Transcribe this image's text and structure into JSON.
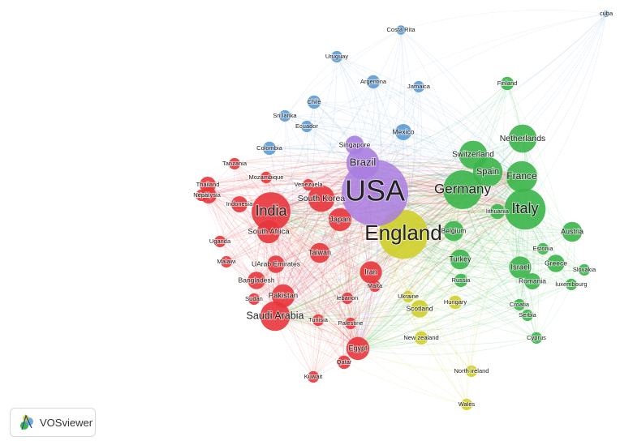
{
  "brand": {
    "name": "VOSviewer",
    "icon": "vosviewer-logo-icon"
  },
  "clusters": {
    "red": {
      "color": "#e8353b"
    },
    "green": {
      "color": "#3bb54a"
    },
    "blue": {
      "color": "#5b9bd5"
    },
    "yellow": {
      "color": "#cfcf2a"
    },
    "purple": {
      "color": "#a97ee0"
    }
  },
  "nodes": [
    {
      "label": "USA",
      "cluster": "purple",
      "weight": 100
    },
    {
      "label": "England",
      "cluster": "yellow",
      "weight": 55
    },
    {
      "label": "Italy",
      "cluster": "green",
      "weight": 38
    },
    {
      "label": "Germany",
      "cluster": "green",
      "weight": 34
    },
    {
      "label": "India",
      "cluster": "red",
      "weight": 34
    },
    {
      "label": "France",
      "cluster": "green",
      "weight": 22
    },
    {
      "label": "Spain",
      "cluster": "green",
      "weight": 20
    },
    {
      "label": "Switzerland",
      "cluster": "green",
      "weight": 18
    },
    {
      "label": "Netherlands",
      "cluster": "green",
      "weight": 18
    },
    {
      "label": "Brazil",
      "cluster": "purple",
      "weight": 24
    },
    {
      "label": "Saudi Arabia",
      "cluster": "red",
      "weight": 20
    },
    {
      "label": "South Korea",
      "cluster": "red",
      "weight": 16
    },
    {
      "label": "Japan",
      "cluster": "red",
      "weight": 12
    },
    {
      "label": "South Africa",
      "cluster": "red",
      "weight": 12
    },
    {
      "label": "Egypt",
      "cluster": "red",
      "weight": 12
    },
    {
      "label": "Pakistan",
      "cluster": "red",
      "weight": 12
    },
    {
      "label": "Iran",
      "cluster": "red",
      "weight": 11
    },
    {
      "label": "Taiwan",
      "cluster": "red",
      "weight": 9
    },
    {
      "label": "Israel",
      "cluster": "green",
      "weight": 11
    },
    {
      "label": "Turkey",
      "cluster": "green",
      "weight": 9
    },
    {
      "label": "Belgium",
      "cluster": "green",
      "weight": 9
    },
    {
      "label": "Austria",
      "cluster": "green",
      "weight": 9
    },
    {
      "label": "Greece",
      "cluster": "green",
      "weight": 7
    },
    {
      "label": "Singapore",
      "cluster": "purple",
      "weight": 8
    },
    {
      "label": "Mexico",
      "cluster": "blue",
      "weight": 6
    },
    {
      "label": "Bangladesh",
      "cluster": "red",
      "weight": 7
    },
    {
      "label": "UArab Emirates",
      "cluster": "red",
      "weight": 7
    },
    {
      "label": "Thailand",
      "cluster": "red",
      "weight": 6
    },
    {
      "label": "Indonesia",
      "cluster": "red",
      "weight": 6
    },
    {
      "label": "Malaysia",
      "cluster": "red",
      "weight": 6
    },
    {
      "label": "Scotland",
      "cluster": "yellow",
      "weight": 7
    },
    {
      "label": "Romania",
      "cluster": "green",
      "weight": 6
    },
    {
      "label": "lithuania",
      "cluster": "green",
      "weight": 5
    },
    {
      "label": "Argentina",
      "cluster": "blue",
      "weight": 4
    },
    {
      "label": "Jamaica",
      "cluster": "blue",
      "weight": 3
    },
    {
      "label": "Chile",
      "cluster": "blue",
      "weight": 4
    },
    {
      "label": "Colombia",
      "cluster": "blue",
      "weight": 4
    },
    {
      "label": "Ecuador",
      "cluster": "blue",
      "weight": 3
    },
    {
      "label": "Sri lanka",
      "cluster": "blue",
      "weight": 3
    },
    {
      "label": "Uruguay",
      "cluster": "blue",
      "weight": 3
    },
    {
      "label": "Costa Rita",
      "cluster": "blue",
      "weight": 2
    },
    {
      "label": "cuba",
      "cluster": "blue",
      "weight": 1
    },
    {
      "label": "Finland",
      "cluster": "green",
      "weight": 4
    },
    {
      "label": "Estonia",
      "cluster": "green",
      "weight": 3
    },
    {
      "label": "Slovakia",
      "cluster": "green",
      "weight": 3
    },
    {
      "label": "luxembourg",
      "cluster": "green",
      "weight": 3
    },
    {
      "label": "Croatia",
      "cluster": "green",
      "weight": 3
    },
    {
      "label": "Serbia",
      "cluster": "green",
      "weight": 3
    },
    {
      "label": "Cyprus",
      "cluster": "green",
      "weight": 3
    },
    {
      "label": "Russia",
      "cluster": "green",
      "weight": 4
    },
    {
      "label": "Hungary",
      "cluster": "yellow",
      "weight": 4
    },
    {
      "label": "Ukraine",
      "cluster": "yellow",
      "weight": 3
    },
    {
      "label": "New zealand",
      "cluster": "yellow",
      "weight": 4
    },
    {
      "label": "North ireland",
      "cluster": "yellow",
      "weight": 3
    },
    {
      "label": "Wales",
      "cluster": "yellow",
      "weight": 3
    },
    {
      "label": "Tanzania",
      "cluster": "red",
      "weight": 3
    },
    {
      "label": "Mozambique",
      "cluster": "red",
      "weight": 3
    },
    {
      "label": "Venezuela",
      "cluster": "red",
      "weight": 3
    },
    {
      "label": "Nepal",
      "cluster": "red",
      "weight": 3
    },
    {
      "label": "Uganda",
      "cluster": "red",
      "weight": 3
    },
    {
      "label": "Malawi",
      "cluster": "red",
      "weight": 3
    },
    {
      "label": "Sudan",
      "cluster": "red",
      "weight": 3
    },
    {
      "label": "Tunisia",
      "cluster": "red",
      "weight": 3
    },
    {
      "label": "Palestine",
      "cluster": "red",
      "weight": 3
    },
    {
      "label": "lebanon",
      "cluster": "red",
      "weight": 3
    },
    {
      "label": "Malta",
      "cluster": "red",
      "weight": 3
    },
    {
      "label": "Qatar",
      "cluster": "red",
      "weight": 4
    },
    {
      "label": "Kuwait",
      "cluster": "red",
      "weight": 3
    }
  ]
}
